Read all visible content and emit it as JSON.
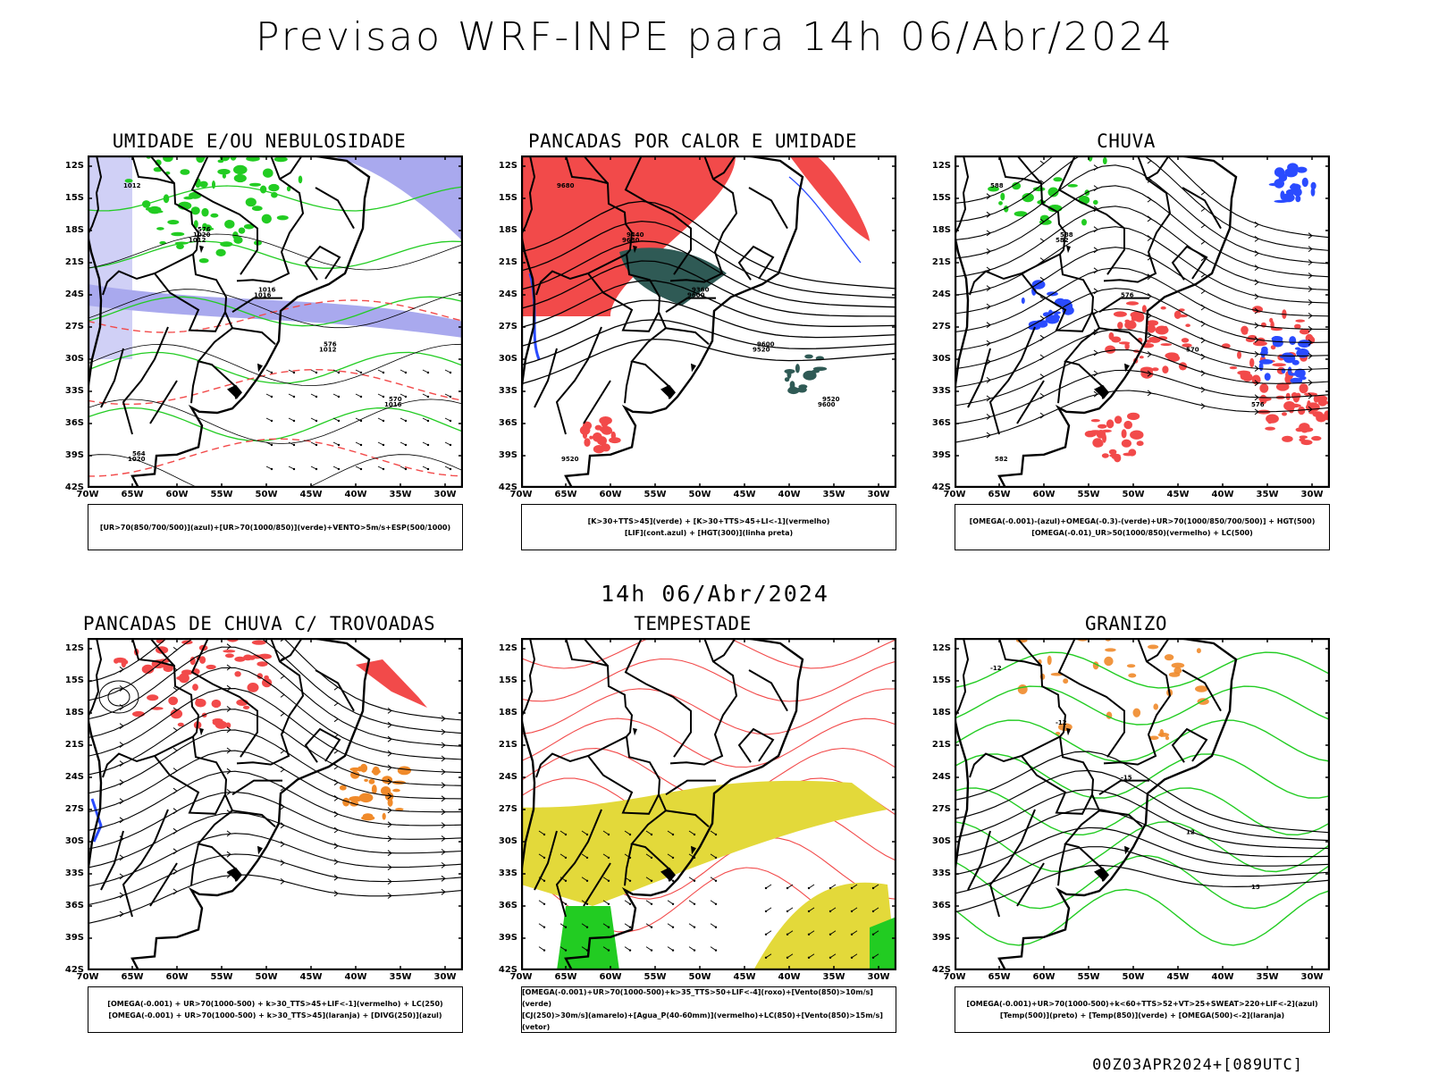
{
  "header": {
    "title": "Previsao WRF-INPE  para 14h 06/Abr/2024",
    "middle_date": "14h 06/Abr/2024",
    "footer": "00Z03APR2024+[089UTC]"
  },
  "axes": {
    "lat_labels": [
      "12S",
      "15S",
      "18S",
      "21S",
      "24S",
      "27S",
      "30S",
      "33S",
      "36S",
      "39S",
      "42S"
    ],
    "lon_labels": [
      "70W",
      "65W",
      "60W",
      "55W",
      "50W",
      "45W",
      "40W",
      "35W",
      "30W"
    ]
  },
  "colors": {
    "contour_black": "#000000",
    "green": "#22cc22",
    "red": "#f24a4a",
    "blue": "#2a4bff",
    "lavender": "#a9a9ee",
    "dark_teal": "#2f5a55",
    "yellow": "#e3d93a",
    "orange": "#f08a2a"
  },
  "panels": [
    {
      "title": "UMIDADE E/OU NEBULOSIDADE",
      "legend": [
        "[UR>70(850/700/500)](azul)+[UR>70(1000/850)](verde)+VENTO>5m/s+ESP(500/1000)"
      ],
      "contour_labels": [
        "1012",
        "1012",
        "1016",
        "1012",
        "1016",
        "1020",
        "1020",
        "1016",
        "576",
        "570",
        "564",
        "576"
      ]
    },
    {
      "title": "PANCADAS POR CALOR E UMIDADE",
      "legend": [
        "[K>30+TTS>45](verde) + [K>30+TTS>45+LI<-1](vermelho)",
        "[LIF](cont.azul) + [HGT(300)](linha preta)"
      ],
      "contour_labels": [
        "9680",
        "9680",
        "9600",
        "9520",
        "9600",
        "9520",
        "9440",
        "9360",
        "9600",
        "9520"
      ]
    },
    {
      "title": "CHUVA",
      "legend": [
        "[OMEGA(-0.001)-(azul)+OMEGA(-0.3)-(verde)+UR>70(1000/850/700/500)] + HGT(500)",
        "[OMEGA(-0.01)_UR>50(1000/850)(vermelho) + LC(500)"
      ],
      "contour_labels": [
        "588",
        "582",
        "576",
        "570",
        "576",
        "582",
        "588"
      ]
    },
    {
      "title": "PANCADAS DE CHUVA C/ TROVOADAS",
      "legend": [
        "[OMEGA(-0.001) + UR>70(1000-500) + k>30_TTS>45+LIF<-1](vermelho) + LC(250)",
        "[OMEGA(-0.001) + UR>70(1000-500) + k>30_TTS>45](laranja) + [DIVG(250)](azul)"
      ],
      "contour_labels": []
    },
    {
      "title": "TEMPESTADE",
      "legend": [
        "[OMEGA(-0.001)+UR>70(1000-500)+k>35_TTS>50+LIF<-4](roxo)+[Vento(850)>10m/s](verde)",
        "[CJ(250)>30m/s](amarelo)+[Agua_P(40-60mm)](vermelho)+LC(850)+[Vento(850)>15m/s](vetor)"
      ],
      "contour_labels": []
    },
    {
      "title": "GRANIZO",
      "legend": [
        "[OMEGA(-0.001)+UR>70(1000-500)+k<60+TTS>52+VT>25+SWEAT>220+LIF<-2](azul)",
        "[Temp(500)](preto) + [Temp(850)](verde) + [OMEGA(500)<-2](laranja)"
      ],
      "contour_labels": [
        "-12",
        "-12",
        "-15",
        "12",
        "15"
      ]
    }
  ]
}
